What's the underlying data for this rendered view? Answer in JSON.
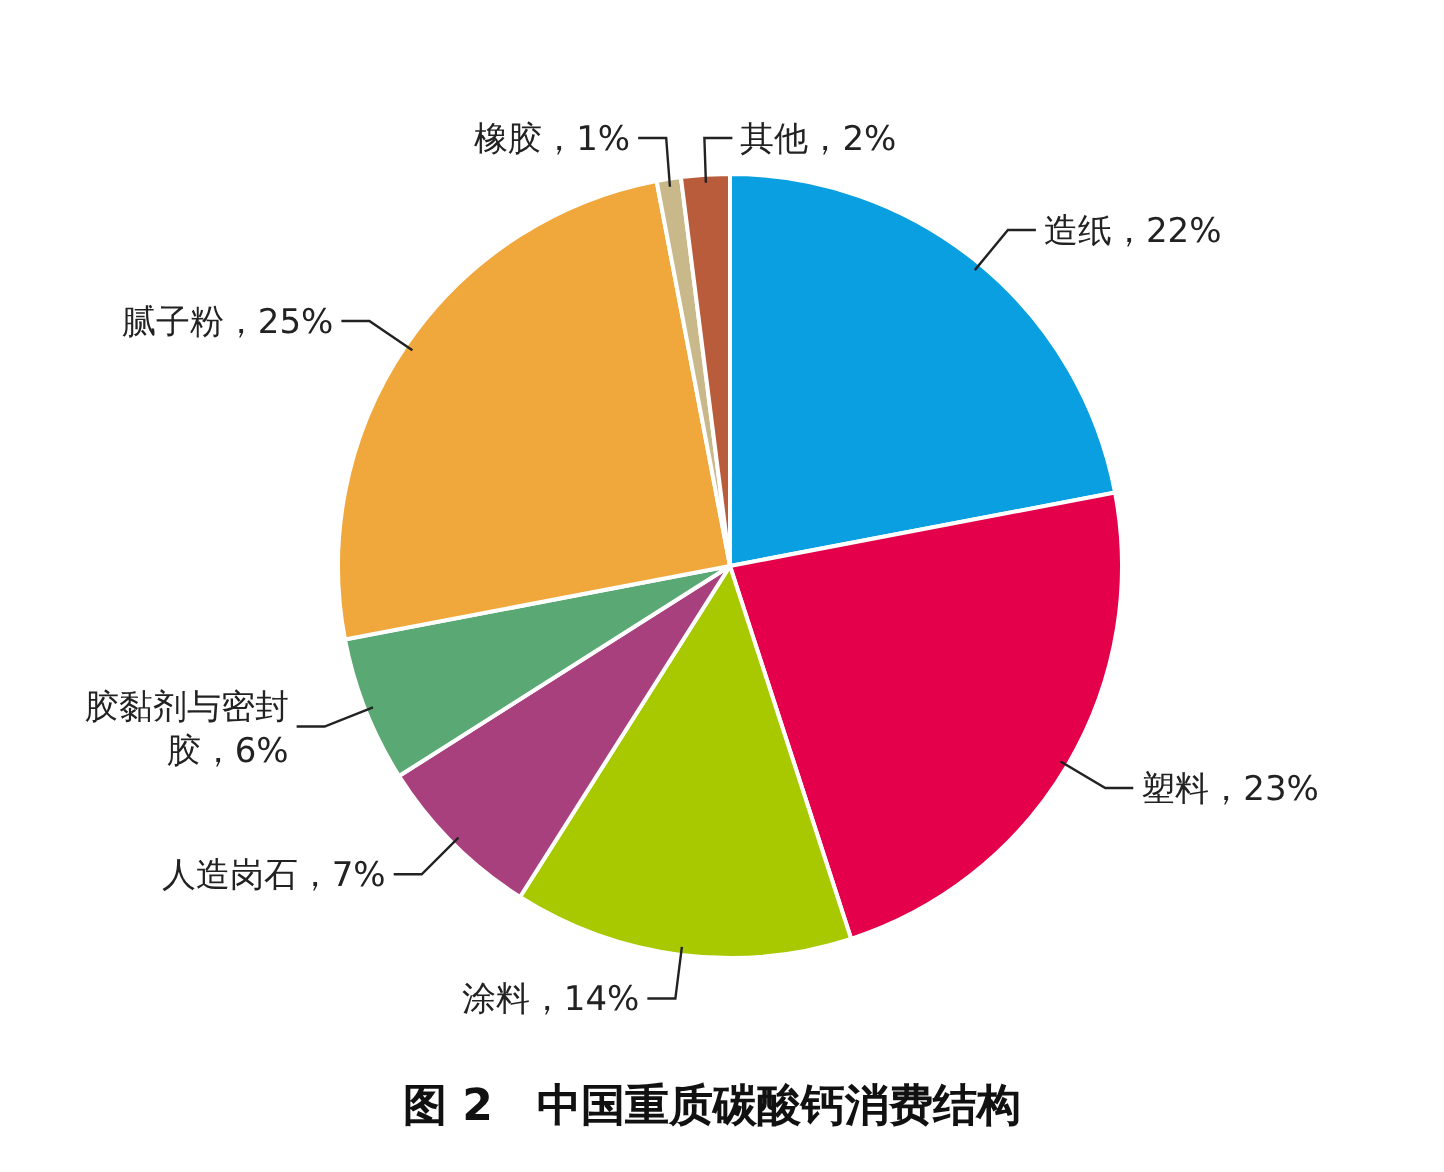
{
  "chart_data": {
    "type": "pie",
    "title": "图 2　中国重质碳酸钙消费结构",
    "categories": [
      "造纸",
      "塑料",
      "涂料",
      "人造岗石",
      "胶黏剂与密封胶",
      "腻子粉",
      "橡胶",
      "其他"
    ],
    "values": [
      22,
      23,
      14,
      7,
      6,
      25,
      1,
      2
    ],
    "value_labels": [
      "，22%",
      "，23%",
      "，14%",
      "，7%",
      "，6%",
      "，25%",
      "，1%",
      "，2%"
    ],
    "colors": [
      "#0a9fe0",
      "#e4004a",
      "#a8c800",
      "#a8407e",
      "#5aa874",
      "#f0a83c",
      "#c8b88a",
      "#b85c3c"
    ]
  }
}
